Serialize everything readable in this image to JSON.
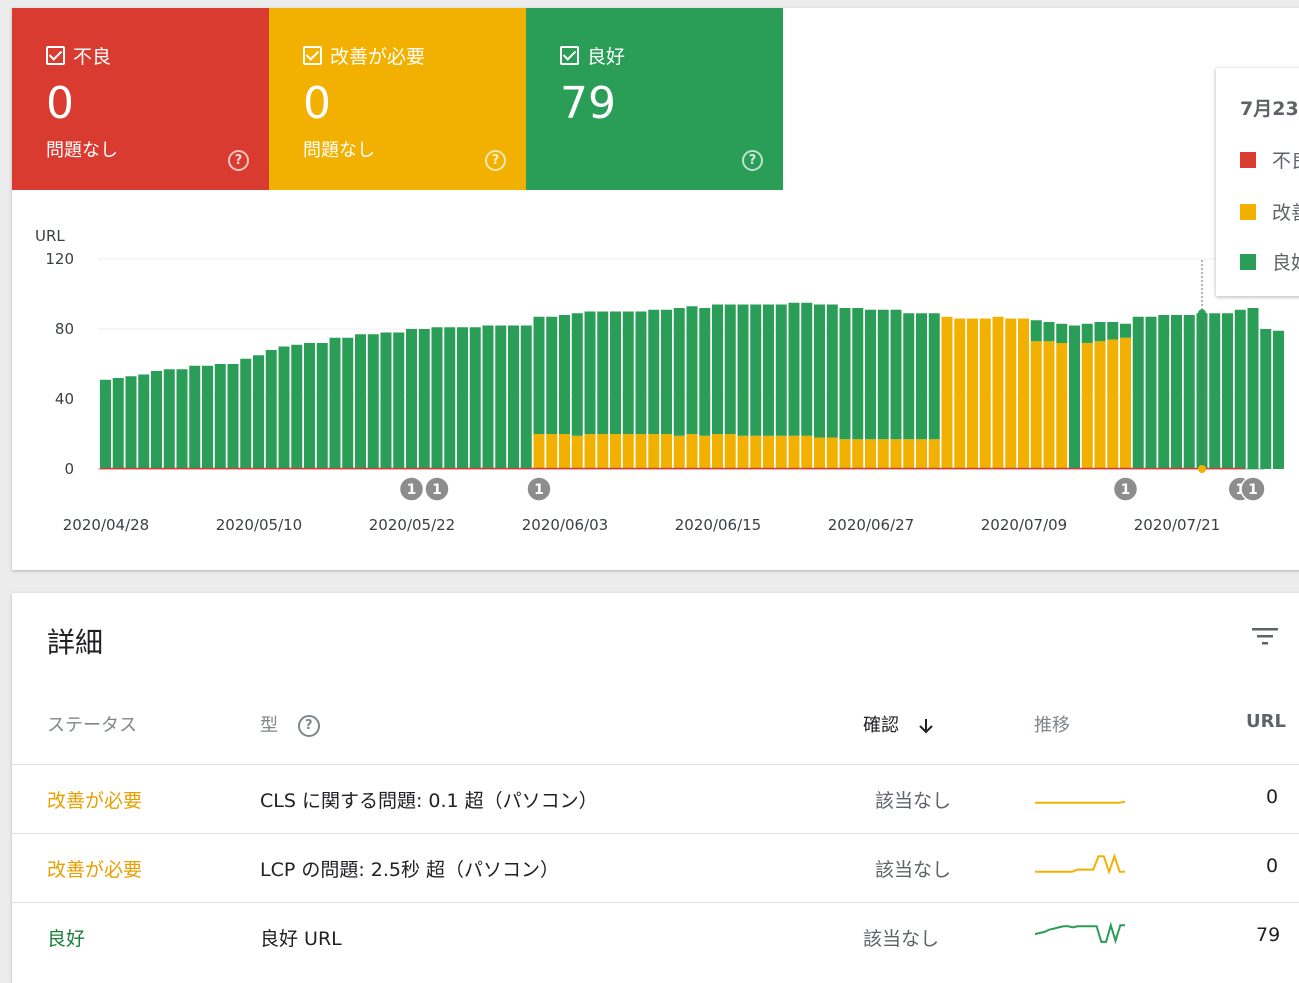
{
  "summary": {
    "tiles": [
      {
        "label": "不良",
        "count": "0",
        "sub": "問題なし",
        "color": "#d93b30"
      },
      {
        "label": "改善が必要",
        "count": "0",
        "sub": "問題なし",
        "color": "#f2b100"
      },
      {
        "label": "良好",
        "count": "79",
        "sub": "",
        "color": "#2a9d57"
      }
    ],
    "help_glyph": "?"
  },
  "chart_data": {
    "type": "bar",
    "stacked": true,
    "ylabel": "URL",
    "ylim": [
      0,
      120
    ],
    "yticks": [
      0,
      40,
      80,
      120
    ],
    "grid": true,
    "x_tick_labels": [
      "2020/04/28",
      "2020/05/10",
      "2020/05/22",
      "2020/06/03",
      "2020/06/15",
      "2020/06/27",
      "2020/07/09",
      "2020/07/21"
    ],
    "series": [
      {
        "name": "不良",
        "color": "#d93b30",
        "values": [
          0,
          0,
          0,
          0,
          0,
          0,
          0,
          0,
          0,
          0,
          0,
          0,
          0,
          0,
          0,
          0,
          0,
          0,
          0,
          0,
          0,
          0,
          0,
          0,
          0,
          0,
          0,
          0,
          0,
          0,
          0,
          0,
          0,
          0,
          0,
          0,
          0,
          0,
          0,
          0,
          0,
          0,
          0,
          0,
          0,
          0,
          0,
          0,
          0,
          0,
          0,
          0,
          0,
          0,
          0,
          0,
          0,
          0,
          0,
          0,
          0,
          0,
          0,
          0,
          0,
          0,
          0,
          0,
          0,
          0,
          0,
          0,
          0,
          0,
          0,
          0,
          0,
          0,
          0,
          0,
          0,
          0,
          0,
          0,
          0,
          0,
          0,
          0,
          0,
          0,
          0,
          0,
          0
        ]
      },
      {
        "name": "改善が必要",
        "color": "#f2b100",
        "values": [
          0,
          0,
          0,
          0,
          0,
          0,
          0,
          0,
          0,
          0,
          0,
          0,
          0,
          0,
          0,
          0,
          0,
          0,
          0,
          0,
          0,
          0,
          0,
          0,
          0,
          0,
          0,
          0,
          0,
          0,
          0,
          0,
          0,
          0,
          20,
          20,
          20,
          19,
          20,
          20,
          20,
          20,
          20,
          20,
          20,
          19,
          20,
          19,
          20,
          20,
          19,
          19,
          19,
          19,
          19,
          19,
          18,
          18,
          17,
          17,
          17,
          17,
          17,
          17,
          17,
          17,
          87,
          86,
          86,
          86,
          87,
          86,
          86,
          73,
          73,
          72,
          0,
          72,
          73,
          74,
          75,
          0,
          0,
          0,
          0,
          0,
          0,
          0,
          0,
          0,
          0,
          0,
          0
        ]
      },
      {
        "name": "良好",
        "color": "#2a9d57",
        "values": [
          51,
          52,
          53,
          54,
          56,
          57,
          57,
          59,
          59,
          60,
          60,
          63,
          65,
          68,
          70,
          71,
          72,
          72,
          75,
          75,
          77,
          77,
          78,
          78,
          80,
          80,
          81,
          81,
          81,
          81,
          82,
          82,
          82,
          82,
          67,
          67,
          68,
          70,
          70,
          70,
          70,
          70,
          70,
          71,
          71,
          73,
          73,
          73,
          74,
          74,
          75,
          75,
          75,
          75,
          76,
          76,
          76,
          76,
          75,
          75,
          74,
          74,
          74,
          72,
          72,
          72,
          0,
          0,
          0,
          0,
          0,
          0,
          0,
          12,
          11,
          11,
          82,
          11,
          11,
          10,
          8,
          87,
          87,
          88,
          88,
          88,
          89,
          89,
          89,
          91,
          92,
          80,
          79
        ]
      }
    ],
    "x_label_indices": [
      0,
      12,
      24,
      36,
      48,
      60,
      72,
      84
    ],
    "annotations": [
      {
        "bar": 24,
        "label": "1"
      },
      {
        "bar": 26,
        "label": "1"
      },
      {
        "bar": 34,
        "label": "1"
      },
      {
        "bar": 80,
        "label": "1"
      },
      {
        "bar": 89,
        "label": "1"
      },
      {
        "bar": 90,
        "label": "1"
      }
    ],
    "highlight_bar": 86
  },
  "tooltip": {
    "date": "7月23",
    "rows": [
      {
        "label": "不良",
        "color": "#d93b30"
      },
      {
        "label": "改善",
        "color": "#f2b100"
      },
      {
        "label": "良好",
        "color": "#2a9d57"
      }
    ]
  },
  "details": {
    "title": "詳細",
    "filter_icon": "filter-icon",
    "headers": {
      "status": "ステータス",
      "type": "型",
      "validation": "確認",
      "trend": "推移",
      "urls": "URL"
    },
    "rows": [
      {
        "status": "改善が必要",
        "status_color": "#e8a000",
        "type": "CLS に関する問題: 0.1 超（パソコン）",
        "validation": "該当なし",
        "trend_color": "#f2b100",
        "trend": [
          2,
          2,
          2,
          2,
          2,
          2,
          2,
          2,
          2,
          2,
          2,
          2,
          2,
          2,
          3
        ],
        "urls": "0"
      },
      {
        "status": "改善が必要",
        "status_color": "#e8a000",
        "type": "LCP の問題: 2.5秒 超（パソコン）",
        "validation": "該当なし",
        "trend_color": "#f2b100",
        "trend": [
          2,
          2,
          2,
          2,
          2,
          2,
          2,
          2,
          4,
          4,
          4,
          4,
          16,
          16,
          2,
          16,
          2,
          2
        ],
        "urls": "0"
      },
      {
        "status": "良好",
        "status_color": "#188038",
        "type": "良好 URL",
        "validation": "該当なし",
        "trend_color": "#2a9d57",
        "trend": [
          8,
          9,
          10,
          12,
          13,
          14,
          15,
          15,
          14,
          15,
          15,
          15,
          15,
          15,
          1,
          1,
          16,
          2,
          16,
          16
        ],
        "urls": "79"
      }
    ]
  }
}
